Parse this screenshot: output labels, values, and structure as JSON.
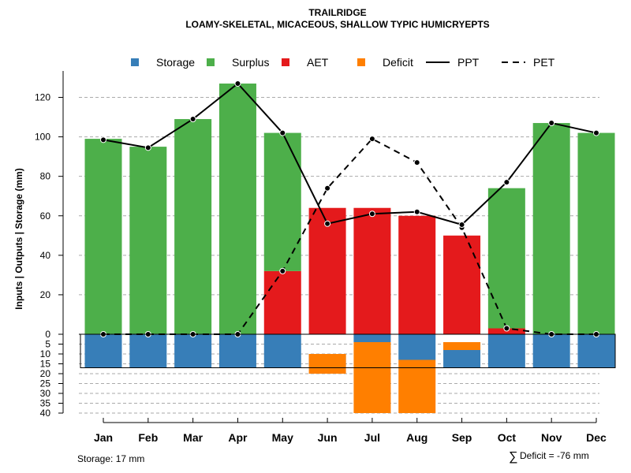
{
  "chart_data": {
    "type": "bar",
    "title": "TRAILRIDGE",
    "subtitle": "LOAMY-SKELETAL, MICACEOUS, SHALLOW TYPIC HUMICRYEPTS",
    "ylabel": "Inputs | Outputs | Storage    (mm)",
    "categories": [
      "Jan",
      "Feb",
      "Mar",
      "Apr",
      "May",
      "Jun",
      "Jul",
      "Aug",
      "Sep",
      "Oct",
      "Nov",
      "Dec"
    ],
    "upper_ylim": [
      0,
      130
    ],
    "upper_ticks": [
      0,
      20,
      40,
      60,
      80,
      100,
      120
    ],
    "lower_ylim": [
      0,
      40
    ],
    "lower_ticks": [
      5,
      10,
      15,
      20,
      25,
      30,
      35,
      40
    ],
    "storage_capacity": 17,
    "series": [
      {
        "name": "Storage",
        "color": "#377EB8",
        "values": [
          17,
          17,
          17,
          17,
          17,
          7,
          -4,
          -13,
          13,
          17,
          17,
          17
        ]
      },
      {
        "name": "Surplus",
        "color": "#4DAF4A",
        "values": [
          99,
          95,
          109,
          127,
          70,
          0,
          0,
          0,
          0,
          71,
          107,
          102
        ]
      },
      {
        "name": "AET",
        "color": "#E41A1C",
        "values": [
          0,
          0,
          0,
          0,
          32,
          64,
          64,
          60,
          50,
          3,
          0,
          0
        ]
      },
      {
        "name": "Deficit",
        "color": "#FF7F00",
        "values": [
          0,
          0,
          0,
          0,
          0,
          -10,
          -36,
          -27,
          -4,
          0,
          0,
          0
        ]
      },
      {
        "name": "PPT",
        "color": "#000000",
        "style": "solid",
        "values": [
          98.5,
          94.5,
          109,
          127,
          102,
          56,
          61,
          62,
          55.5,
          77,
          107,
          102
        ]
      },
      {
        "name": "PET",
        "color": "#000000",
        "style": "dashed",
        "values": [
          0,
          0,
          0,
          0,
          32,
          74,
          99,
          87,
          54,
          3,
          0,
          0
        ]
      }
    ],
    "legend": [
      "Storage",
      "Surplus",
      "AET",
      "Deficit",
      "PPT",
      "PET"
    ],
    "legend_position": "top",
    "grid": true
  },
  "footer": {
    "storage_label": "Storage: 17 mm",
    "deficit_symbol": "∑",
    "deficit_label": "Deficit = -76 mm"
  }
}
